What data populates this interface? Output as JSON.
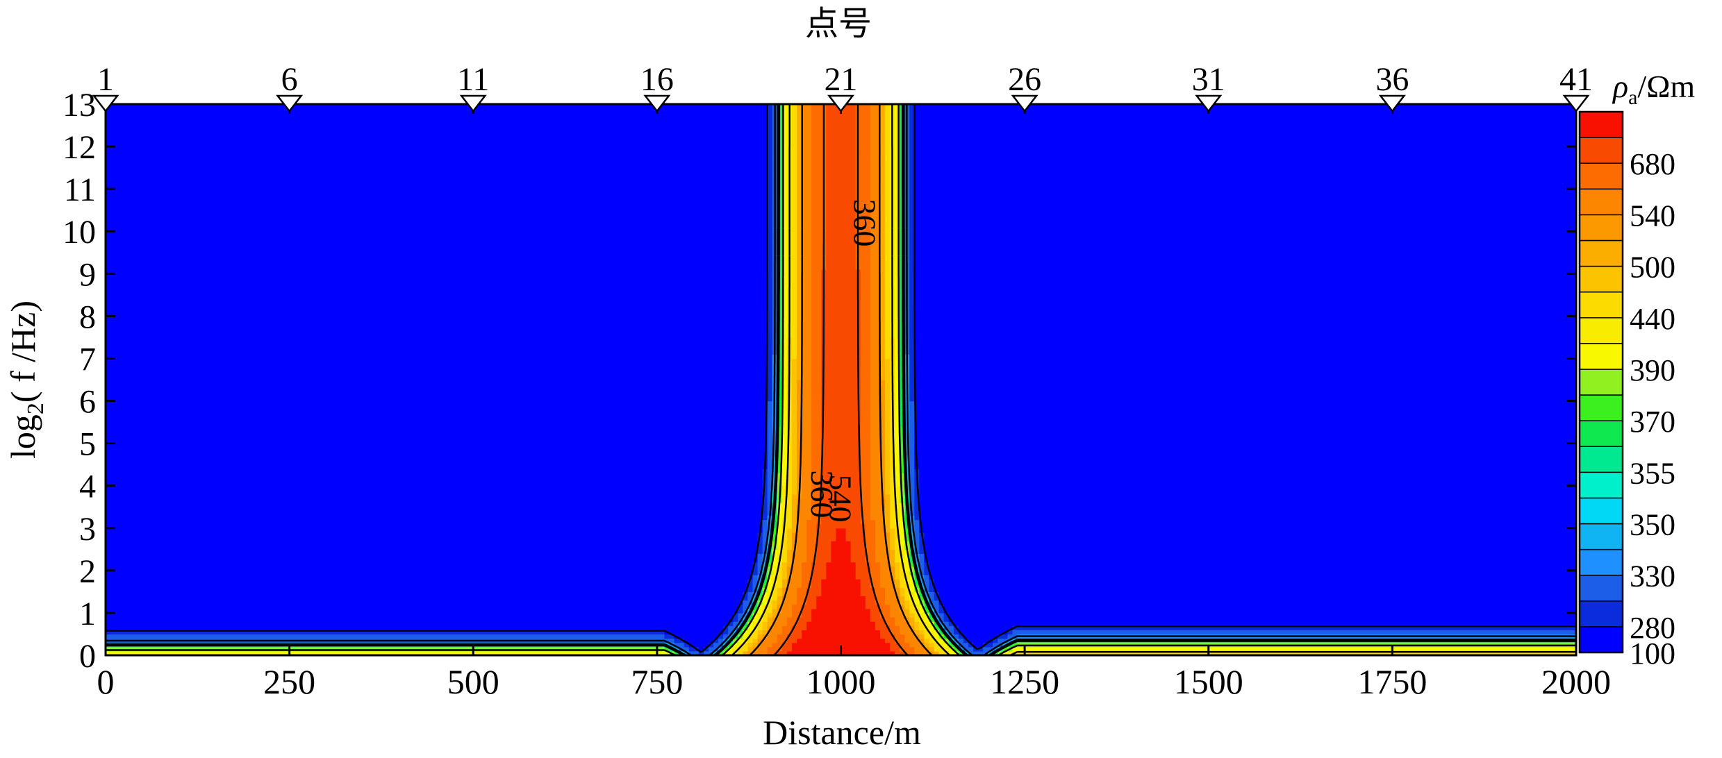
{
  "chart_data": {
    "type": "heatmap",
    "title": "",
    "top_axis_label": "点号",
    "xlabel": "Distance/m",
    "ylabel_prefix": "log",
    "ylabel_sub": "2",
    "ylabel_suffix": "( f /Hz)",
    "xlim": [
      0,
      2000
    ],
    "ylim": [
      0,
      13
    ],
    "x_ticks": [
      0,
      250,
      500,
      750,
      1000,
      1250,
      1500,
      1750,
      2000
    ],
    "y_ticks": [
      0,
      1,
      2,
      3,
      4,
      5,
      6,
      7,
      8,
      9,
      10,
      11,
      12,
      13
    ],
    "stations": [
      {
        "label": "1",
        "x": 0
      },
      {
        "label": "6",
        "x": 250
      },
      {
        "label": "11",
        "x": 500
      },
      {
        "label": "16",
        "x": 750
      },
      {
        "label": "21",
        "x": 1000
      },
      {
        "label": "26",
        "x": 1250
      },
      {
        "label": "31",
        "x": 1500
      },
      {
        "label": "36",
        "x": 1750
      },
      {
        "label": "41",
        "x": 2000
      }
    ],
    "colorbar": {
      "title_symbol": "ρ",
      "title_sub": "a",
      "title_unit": "/Ωm",
      "levels": [
        100,
        280,
        300,
        330,
        340,
        350,
        352,
        355,
        360,
        370,
        380,
        390,
        420,
        440,
        480,
        500,
        520,
        540,
        620,
        680,
        740
      ],
      "colors": [
        "#0000ff",
        "#0a2cdc",
        "#1c5ee8",
        "#1e90ff",
        "#10b4f2",
        "#00d8f6",
        "#00f0cc",
        "#00e890",
        "#10e850",
        "#3cf020",
        "#90f020",
        "#f8f800",
        "#f8ec00",
        "#fcdc00",
        "#fcc400",
        "#fcae00",
        "#fc9800",
        "#fc8600",
        "#fc6c00",
        "#f84a00",
        "#f81000"
      ],
      "tick_labels": [
        {
          "value": 100,
          "label": "100"
        },
        {
          "value": 280,
          "label": "280"
        },
        {
          "value": 330,
          "label": "330"
        },
        {
          "value": 350,
          "label": "350"
        },
        {
          "value": 355,
          "label": "355"
        },
        {
          "value": 370,
          "label": "370"
        },
        {
          "value": 390,
          "label": "390"
        },
        {
          "value": 440,
          "label": "440"
        },
        {
          "value": 500,
          "label": "500"
        },
        {
          "value": 540,
          "label": "540"
        },
        {
          "value": 680,
          "label": "680"
        }
      ]
    },
    "contour_labels": [
      {
        "text": "360",
        "x": 1018,
        "y": 10.2
      },
      {
        "text": "360",
        "x": 960,
        "y": 3.8
      },
      {
        "text": "540",
        "x": 985,
        "y": 3.7
      }
    ]
  }
}
